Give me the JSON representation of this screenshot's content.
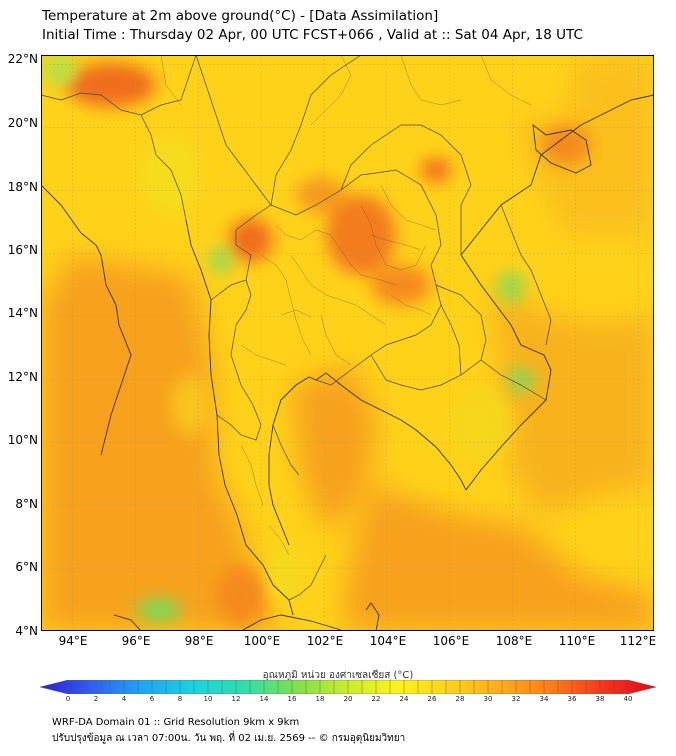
{
  "header": {
    "title_line1": "Temperature at 2m above ground(°C) - [Data Assimilation]",
    "title_line2": "Initial Time : Thursday 02 Apr, 00 UTC FCST+066 , Valid at :: Sat 04 Apr, 18 UTC"
  },
  "map": {
    "lat_labels": [
      "22°N",
      "20°N",
      "18°N",
      "16°N",
      "14°N",
      "12°N",
      "10°N",
      "8°N",
      "6°N",
      "4°N"
    ],
    "lon_labels": [
      "94°E",
      "96°E",
      "98°E",
      "100°E",
      "102°E",
      "104°E",
      "106°E",
      "108°E",
      "110°E",
      "112°E"
    ],
    "lat_range": [
      4,
      22.3
    ],
    "lon_range": [
      93,
      112.5
    ],
    "gridlines": true,
    "colors": {
      "hot": "#f06d1c",
      "warm": "#f7a11a",
      "mild": "#ffd21a",
      "cool": "#f2e41f",
      "green": "#7ed957"
    }
  },
  "colorbar": {
    "label": "อุณหภูมิ หน่วย องศาเซลเซียส (°C)",
    "ticks": [
      "0",
      "2",
      "4",
      "6",
      "8",
      "10",
      "12",
      "14",
      "16",
      "18",
      "20",
      "22",
      "24",
      "26",
      "28",
      "30",
      "32",
      "34",
      "36",
      "38",
      "40"
    ],
    "range": [
      0,
      40
    ],
    "stops": [
      "#2b1fd6",
      "#2f5ff0",
      "#1fa6f2",
      "#19d3e0",
      "#2ee0a6",
      "#7fe14a",
      "#c9ee2a",
      "#fff21a",
      "#ffd11a",
      "#ffab19",
      "#ff7a18",
      "#f5341a",
      "#e3061a"
    ]
  },
  "footer": {
    "line1": "WRF-DA Domain 01 :: Grid Resolution 9km x 9km",
    "line2": "ปรับปรุงข้อมูล ณ เวลา 07:00น. วัน พฤ. ที่ 02 เม.ย. 2569 -- © กรมอุตุนิยมวิทยา"
  }
}
